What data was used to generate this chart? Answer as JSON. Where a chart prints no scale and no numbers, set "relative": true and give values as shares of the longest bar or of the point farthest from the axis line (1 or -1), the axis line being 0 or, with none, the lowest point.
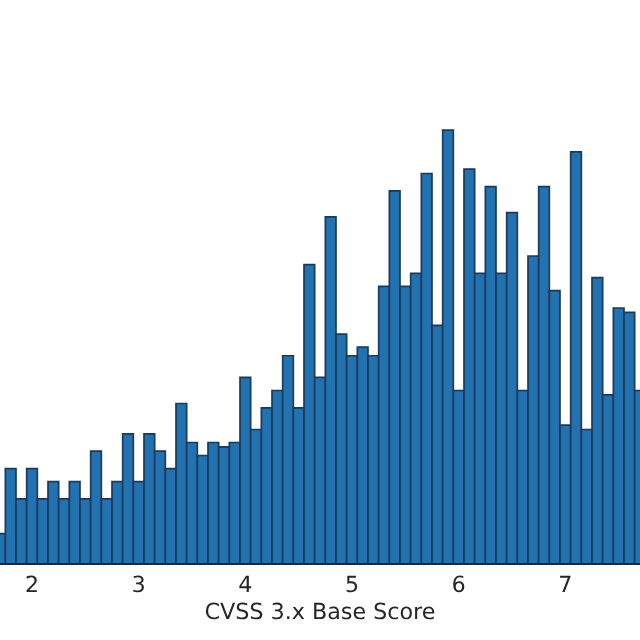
{
  "chart_data": {
    "type": "bar",
    "xlabel": "CVSS 3.x Base Score",
    "relative": true,
    "color": "#2271b1",
    "x": [
      1.7,
      1.8,
      1.9,
      2.0,
      2.1,
      2.2,
      2.3,
      2.4,
      2.5,
      2.6,
      2.7,
      2.8,
      2.9,
      3.0,
      3.1,
      3.2,
      3.3,
      3.4,
      3.5,
      3.6,
      3.7,
      3.8,
      3.9,
      4.0,
      4.1,
      4.2,
      4.3,
      4.4,
      4.5,
      4.6,
      4.7,
      4.8,
      4.9,
      5.0,
      5.1,
      5.2,
      5.3,
      5.4,
      5.5,
      5.6,
      5.7,
      5.8,
      5.9,
      6.0,
      6.1,
      6.2,
      6.3,
      6.4,
      6.5,
      6.6,
      6.7,
      6.8,
      6.9,
      7.0,
      7.1,
      7.2,
      7.3,
      7.4,
      7.5,
      7.6,
      7.7
    ],
    "values": [
      0.07,
      0.22,
      0.15,
      0.22,
      0.15,
      0.19,
      0.15,
      0.19,
      0.15,
      0.26,
      0.15,
      0.19,
      0.3,
      0.19,
      0.3,
      0.26,
      0.22,
      0.37,
      0.28,
      0.25,
      0.28,
      0.27,
      0.28,
      0.43,
      0.31,
      0.36,
      0.4,
      0.48,
      0.36,
      0.69,
      0.43,
      0.8,
      0.53,
      0.48,
      0.5,
      0.48,
      0.64,
      0.86,
      0.64,
      0.67,
      0.9,
      0.55,
      1,
      0.4,
      0.91,
      0.67,
      0.87,
      0.67,
      0.81,
      0.4,
      0.71,
      0.87,
      0.63,
      0.32,
      0.95,
      0.31,
      0.66,
      0.39,
      0.59,
      0.58,
      0.4
    ],
    "xlim": [
      1.7,
      7.7
    ],
    "xticks": [
      2,
      3,
      4,
      5,
      6,
      7
    ],
    "grid": false
  }
}
